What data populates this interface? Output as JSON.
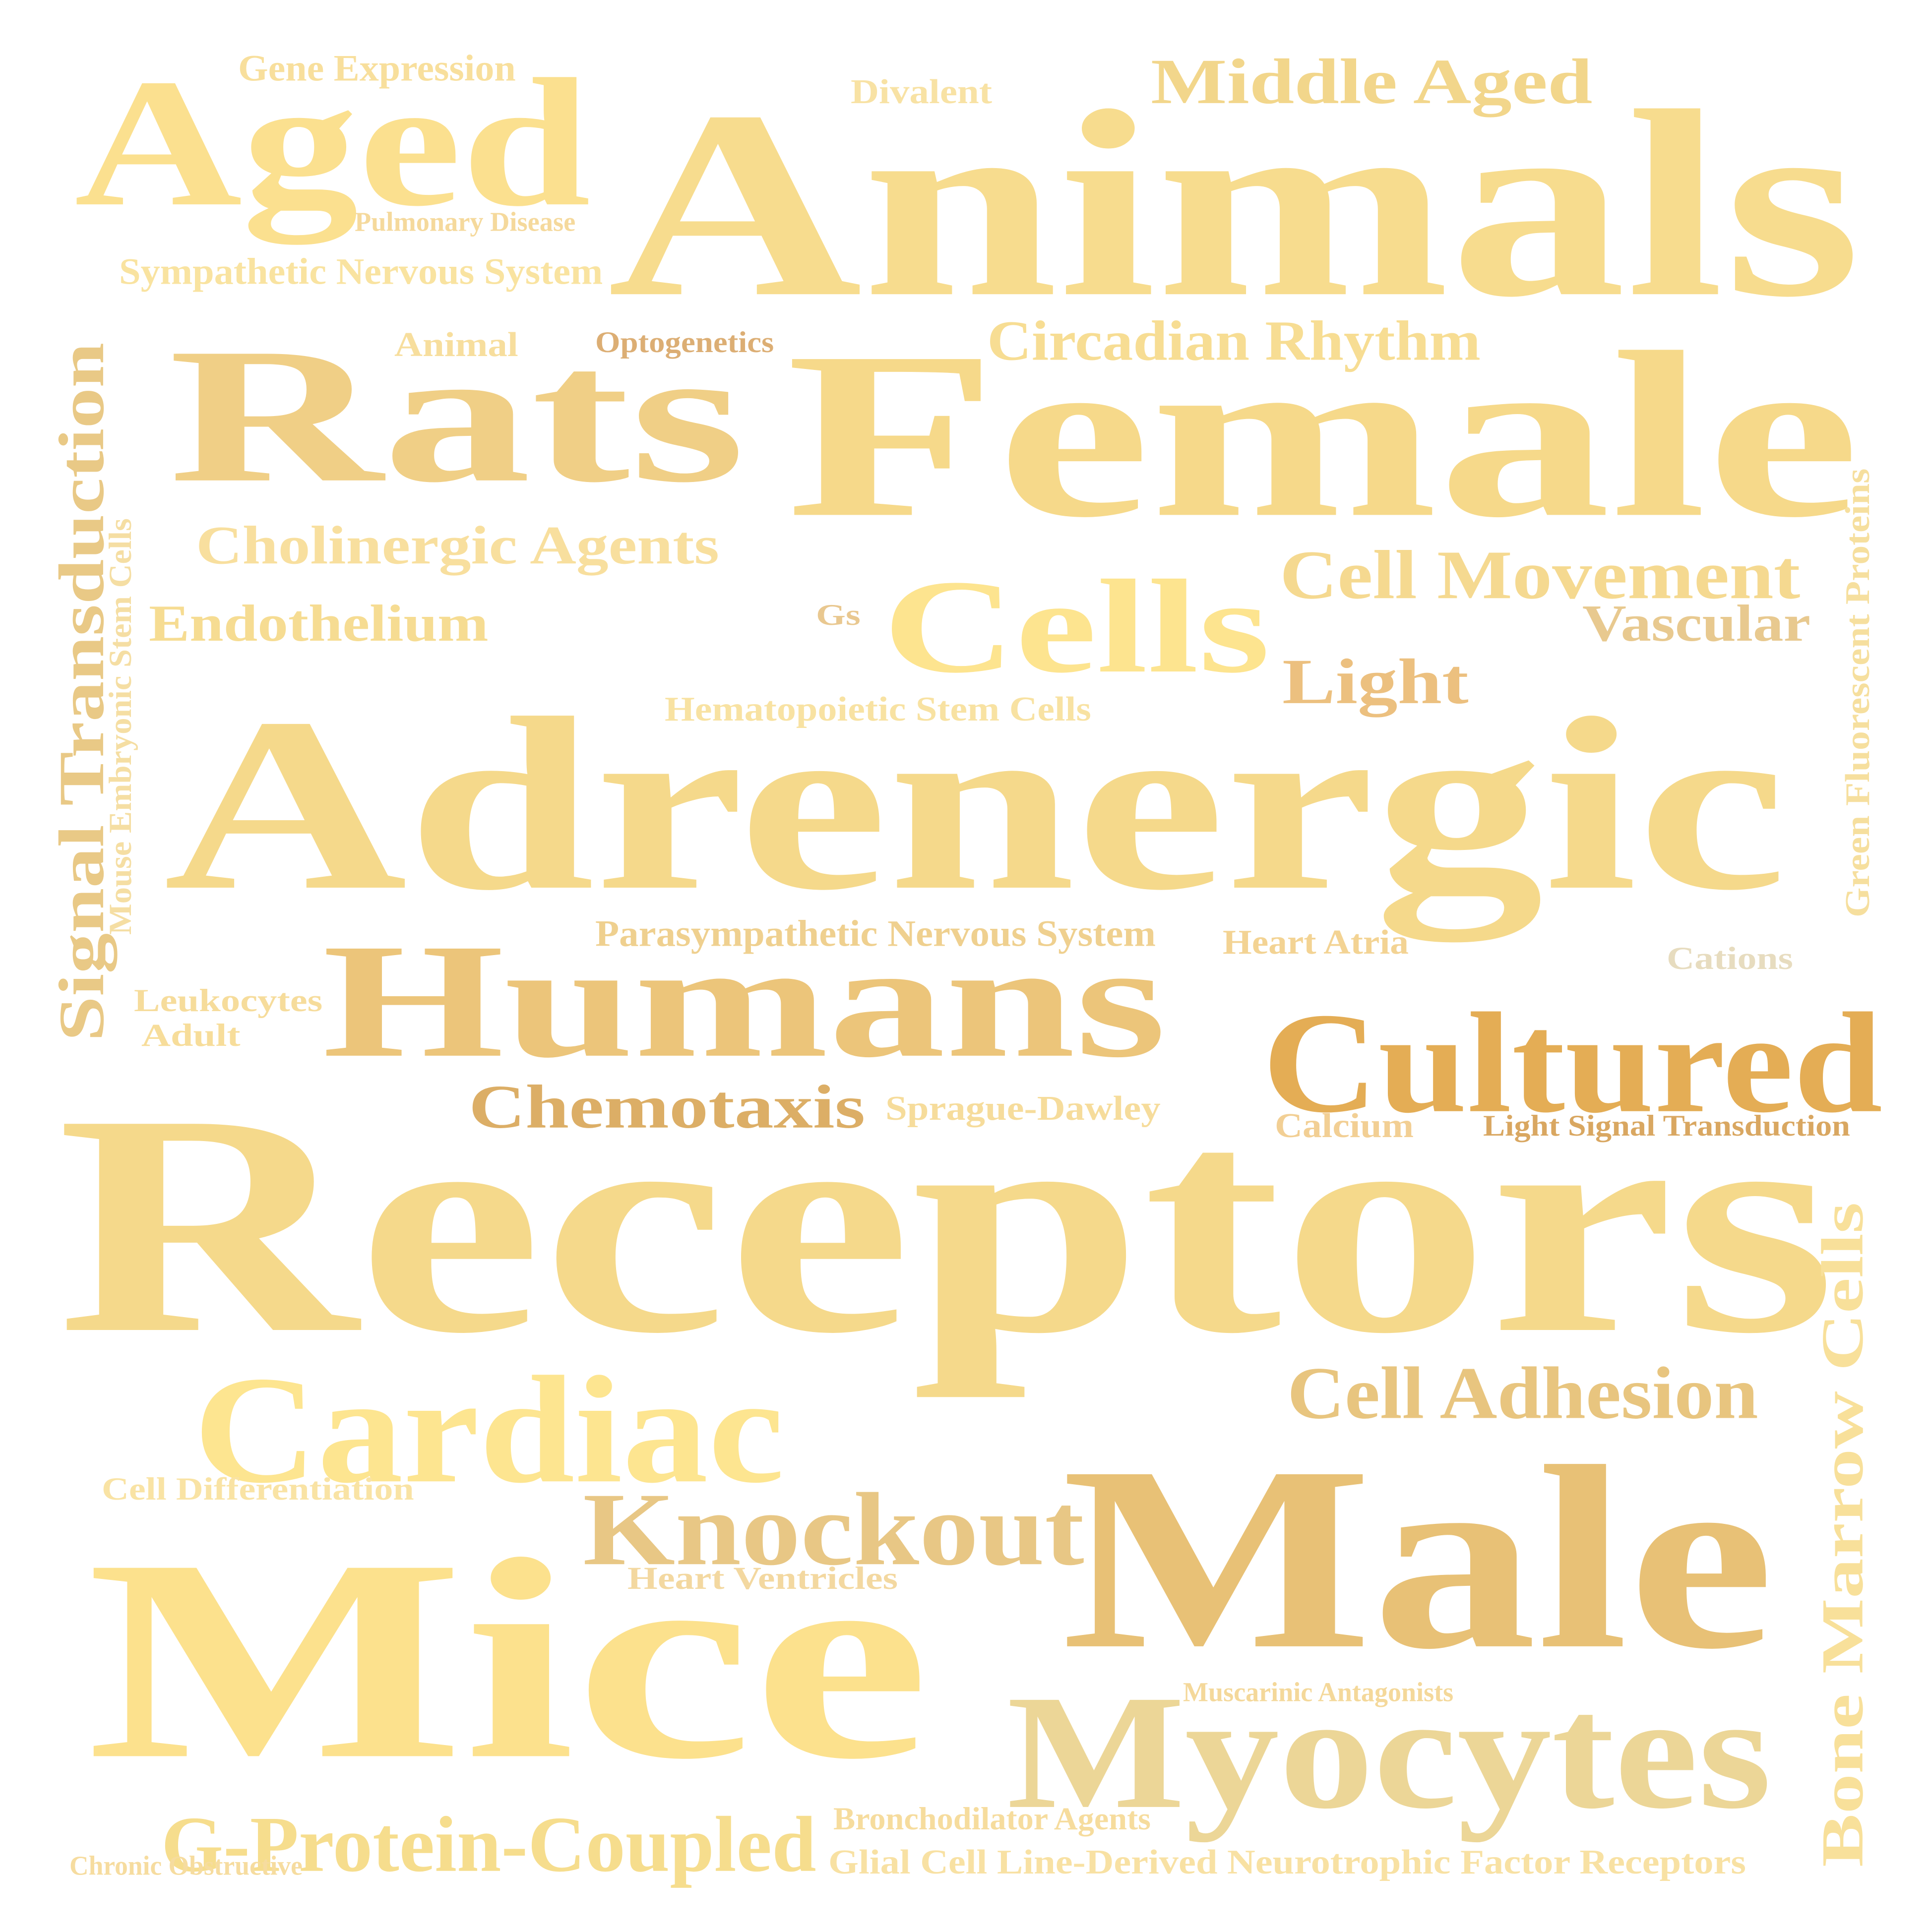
{
  "word_cloud": {
    "words": [
      {
        "id": "receptors",
        "text": "Receptors",
        "color": "#f5d98b",
        "rotate": 0
      },
      {
        "id": "adrenergic",
        "text": "Adrenergic",
        "color": "#f5d98b",
        "rotate": 0
      },
      {
        "id": "animals",
        "text": "Animals",
        "color": "#f7dc8e",
        "rotate": 0
      },
      {
        "id": "mice",
        "text": "Mice",
        "color": "#fce18d",
        "rotate": 0
      },
      {
        "id": "female",
        "text": "Female",
        "color": "#f6d98a",
        "rotate": 0
      },
      {
        "id": "rats",
        "text": "Rats",
        "color": "#f0cf86",
        "rotate": 0
      },
      {
        "id": "male",
        "text": "Male",
        "color": "#e8c176",
        "rotate": 0
      },
      {
        "id": "humans",
        "text": "Humans",
        "color": "#ecc57a",
        "rotate": 0
      },
      {
        "id": "aged",
        "text": "Aged",
        "color": "#fbe08f",
        "rotate": 0
      },
      {
        "id": "myocytes",
        "text": "Myocytes",
        "color": "#ecd697",
        "rotate": 0
      },
      {
        "id": "cardiac",
        "text": "Cardiac",
        "color": "#fde590",
        "rotate": 0
      },
      {
        "id": "cells",
        "text": "Cells",
        "color": "#fde48f",
        "rotate": 0
      },
      {
        "id": "cultured",
        "text": "Cultured",
        "color": "#e4ad55",
        "rotate": 0
      },
      {
        "id": "knockout",
        "text": "Knockout",
        "color": "#e8c785",
        "rotate": 0
      },
      {
        "id": "g_protein",
        "text": "G-Protein-Coupled",
        "color": "#f6dd8d",
        "rotate": 0
      },
      {
        "id": "middle_aged",
        "text": "Middle Aged",
        "color": "#f2d68b",
        "rotate": 0
      },
      {
        "id": "cell_movement",
        "text": "Cell Movement",
        "color": "#f5d990",
        "rotate": 0
      },
      {
        "id": "cell_adhesion",
        "text": "Cell Adhesion",
        "color": "#e8c57f",
        "rotate": 0
      },
      {
        "id": "circadian",
        "text": "Circadian Rhythm",
        "color": "#f7dd93",
        "rotate": 0
      },
      {
        "id": "signal_trans",
        "text": "Signal Transduction",
        "color": "#e9c986",
        "rotate": -90
      },
      {
        "id": "bone_marrow",
        "text": "Bone Marrow Cells",
        "color": "#f8e09a",
        "rotate": -90
      },
      {
        "id": "chemotaxis",
        "text": "Chemotaxis",
        "color": "#dcae66",
        "rotate": 0
      },
      {
        "id": "cholinergic",
        "text": "Cholinergic Agents",
        "color": "#f8df9e",
        "rotate": 0
      },
      {
        "id": "endothelium",
        "text": "Endothelium",
        "color": "#f6dc92",
        "rotate": 0
      },
      {
        "id": "light",
        "text": "Light",
        "color": "#ecc07f",
        "rotate": 0
      },
      {
        "id": "vascular",
        "text": "Vascular",
        "color": "#e8c98f",
        "rotate": 0
      },
      {
        "id": "sympathetic",
        "text": "Sympathetic Nervous System",
        "color": "#f9e3a0",
        "rotate": 0
      },
      {
        "id": "gene_expr",
        "text": "Gene Expression",
        "color": "#f8df9c",
        "rotate": 0
      },
      {
        "id": "divalent",
        "text": "Divalent",
        "color": "#f8e2a4",
        "rotate": 0
      },
      {
        "id": "pulmonary",
        "text": "Pulmonary Disease",
        "color": "#f5d99c",
        "rotate": 0
      },
      {
        "id": "animal",
        "text": "Animal",
        "color": "#f7de9d",
        "rotate": 0
      },
      {
        "id": "optogenetics",
        "text": "Optogenetics",
        "color": "#dcae74",
        "rotate": 0
      },
      {
        "id": "gs",
        "text": "Gs",
        "color": "#e9c890",
        "rotate": 0
      },
      {
        "id": "hematopoietic",
        "text": "Hematopoietic Stem Cells",
        "color": "#f8e2a2",
        "rotate": 0
      },
      {
        "id": "mouse_esc",
        "text": "Mouse Embryonic Stem Cells",
        "color": "#f5dea3",
        "rotate": -90
      },
      {
        "id": "gfp",
        "text": "Green Fluorescent Proteins",
        "color": "#f6df9e",
        "rotate": -90
      },
      {
        "id": "parasympathetic",
        "text": "Parasympathetic Nervous System",
        "color": "#efd08f",
        "rotate": 0
      },
      {
        "id": "heart_atria",
        "text": "Heart Atria",
        "color": "#f3d393",
        "rotate": 0
      },
      {
        "id": "cations",
        "text": "Cations",
        "color": "#e7dcbf",
        "rotate": 0
      },
      {
        "id": "leukocytes",
        "text": "Leukocytes",
        "color": "#f6dc9b",
        "rotate": 0
      },
      {
        "id": "adult",
        "text": "Adult",
        "color": "#f7dd9a",
        "rotate": 0
      },
      {
        "id": "sprague",
        "text": "Sprague-Dawley",
        "color": "#f6dc9b",
        "rotate": 0
      },
      {
        "id": "calcium",
        "text": "Calcium",
        "color": "#f2cf94",
        "rotate": 0
      },
      {
        "id": "light_signal",
        "text": "Light Signal Transduction",
        "color": "#d9a761",
        "rotate": 0
      },
      {
        "id": "cell_diff",
        "text": "Cell Differentiation",
        "color": "#f9e3a4",
        "rotate": 0
      },
      {
        "id": "heart_vent",
        "text": "Heart Ventricles",
        "color": "#f3d8a0",
        "rotate": 0
      },
      {
        "id": "muscarinic",
        "text": "Muscarinic Antagonists",
        "color": "#f4d89a",
        "rotate": 0
      },
      {
        "id": "bronchodilator",
        "text": "Bronchodilator Agents",
        "color": "#f6dc9d",
        "rotate": 0
      },
      {
        "id": "glial",
        "text": "Glial Cell Line-Derived Neurotrophic Factor Receptors",
        "color": "#f8e1a3",
        "rotate": 0
      },
      {
        "id": "copd",
        "text": "Chronic Obstructive",
        "color": "#f6dc9f",
        "rotate": 0
      }
    ]
  }
}
